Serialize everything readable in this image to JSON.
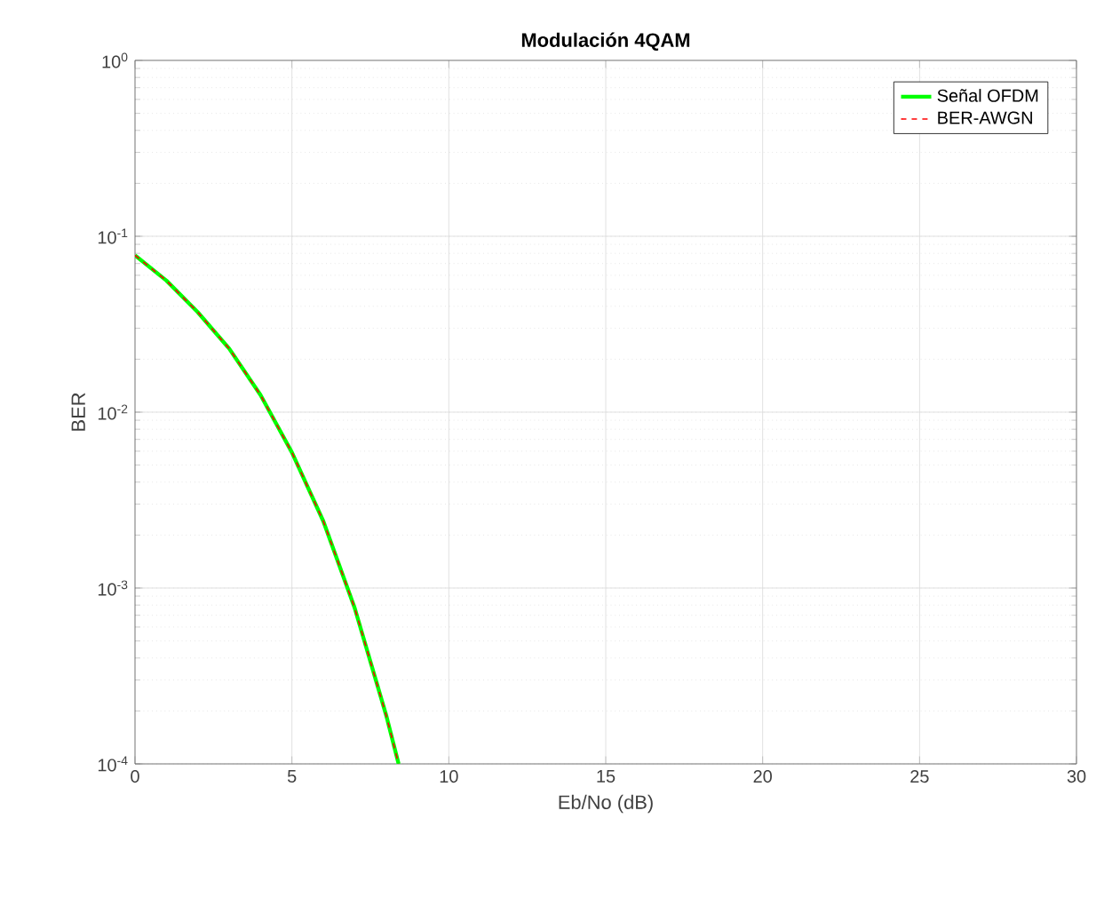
{
  "chart_data": {
    "type": "line",
    "title": "Modulación 4QAM",
    "xlabel": "Eb/No (dB)",
    "ylabel": "BER",
    "x": [
      0,
      1,
      2,
      3,
      4,
      5,
      6,
      7,
      8,
      8.4
    ],
    "series": [
      {
        "name": "Señal OFDM",
        "color": "#00ff00",
        "line_style": "solid",
        "values": [
          0.078,
          0.056,
          0.037,
          0.023,
          0.0125,
          0.0059,
          0.0024,
          0.00077,
          0.00019,
          0.0001
        ]
      },
      {
        "name": "BER-AWGN",
        "color": "#ff0000",
        "line_style": "dashed",
        "values": [
          0.078,
          0.056,
          0.037,
          0.023,
          0.0125,
          0.0059,
          0.0024,
          0.00077,
          0.00019,
          0.0001
        ]
      }
    ],
    "xlim": [
      0,
      30
    ],
    "ylim": [
      0.0001,
      1
    ],
    "xticks": [
      0,
      5,
      10,
      15,
      20,
      25,
      30
    ],
    "yticks": [
      {
        "value": 0.0001,
        "label": "10$^{-4}$"
      },
      {
        "value": 0.001,
        "label": "10$^{-3}$"
      },
      {
        "value": 0.01,
        "label": "10$^{-2}$"
      },
      {
        "value": 0.1,
        "label": "10$^{-1}$"
      },
      {
        "value": 1,
        "label": "10$^{0}$"
      }
    ],
    "log": "y",
    "grid": true,
    "legend": "top right",
    "marker": "none"
  }
}
